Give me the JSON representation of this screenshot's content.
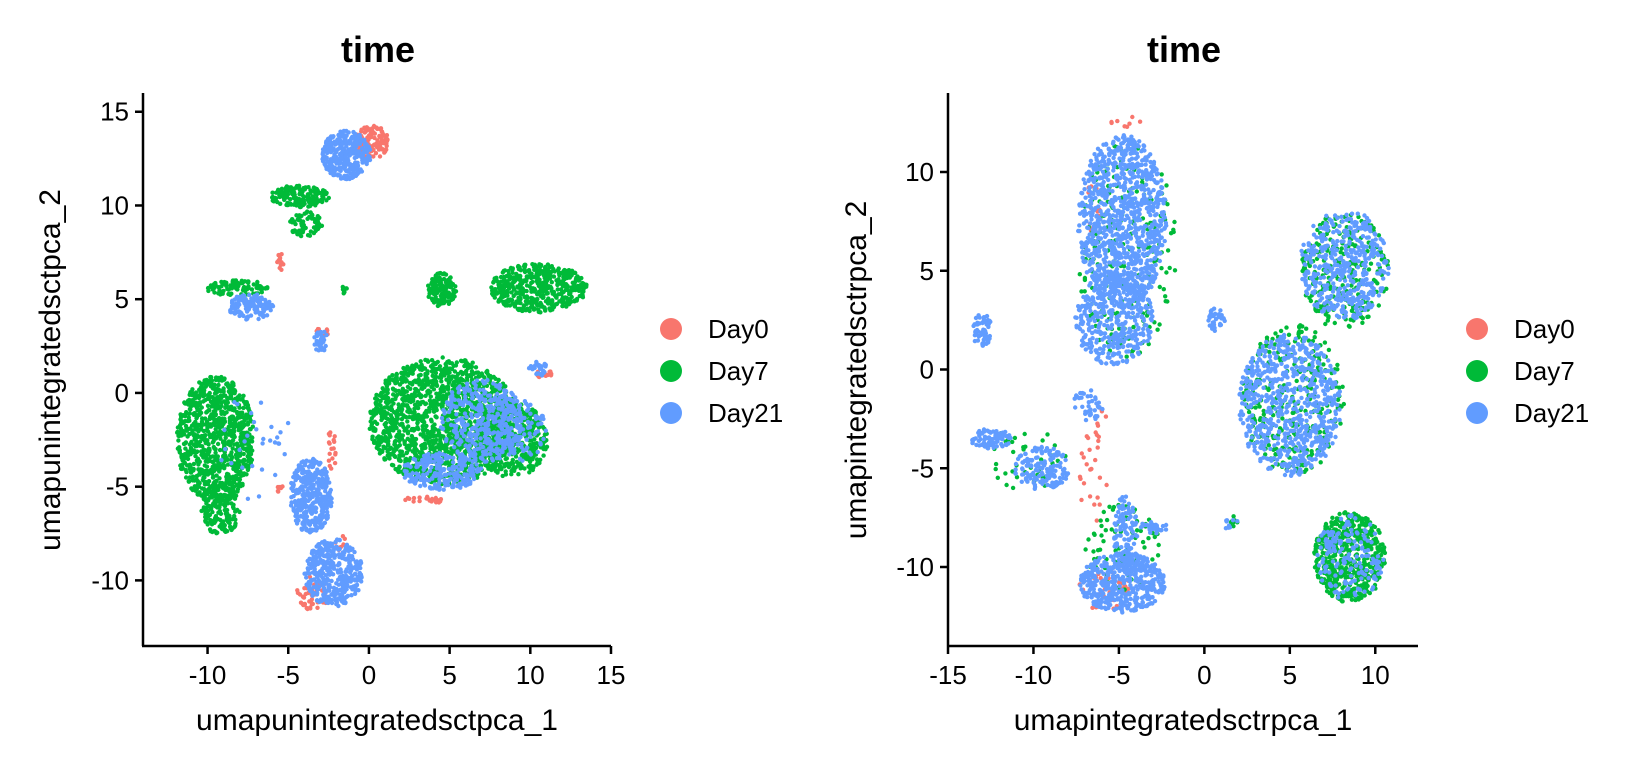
{
  "chart_data": [
    {
      "type": "scatter",
      "title": "time",
      "xlabel": "umapunintegratedsctpca_1",
      "ylabel": "umapunintegratedsctpca_2",
      "xlim": [
        -14,
        15
      ],
      "ylim": [
        -13.5,
        16
      ],
      "xticks": [
        -10,
        -5,
        0,
        5,
        10,
        15
      ],
      "xtick_labels": [
        "-10",
        "-5",
        "0",
        "5",
        "10",
        "15"
      ],
      "yticks": [
        -10,
        -5,
        0,
        5,
        10,
        15
      ],
      "ytick_labels": [
        "-10",
        "-5",
        "0",
        "5",
        "10",
        "15"
      ],
      "grid": false,
      "legend_position": "right",
      "series": [
        {
          "name": "Day0",
          "color": "#F8766D",
          "clusters": [
            {
              "cx": 0.2,
              "cy": 13.4,
              "rx": 1.0,
              "ry": 0.9,
              "n": 120
            },
            {
              "cx": -5.5,
              "cy": 7.0,
              "rx": 0.2,
              "ry": 0.5,
              "n": 14
            },
            {
              "cx": -2.9,
              "cy": 3.2,
              "rx": 0.4,
              "ry": 0.4,
              "n": 12
            },
            {
              "cx": 10.9,
              "cy": 1.0,
              "rx": 0.6,
              "ry": 0.3,
              "n": 14
            },
            {
              "cx": 3.5,
              "cy": -5.7,
              "rx": 1.3,
              "ry": 0.2,
              "n": 22
            },
            {
              "cx": -2.3,
              "cy": -3.0,
              "rx": 0.3,
              "ry": 1.1,
              "n": 18
            },
            {
              "cx": -3.5,
              "cy": -10.7,
              "rx": 1.0,
              "ry": 0.9,
              "n": 50
            },
            {
              "cx": -5.5,
              "cy": -5.0,
              "rx": 0.3,
              "ry": 0.3,
              "n": 8
            },
            {
              "cx": -1.7,
              "cy": -8.0,
              "rx": 0.5,
              "ry": 0.4,
              "n": 10
            }
          ]
        },
        {
          "name": "Day7",
          "color": "#00BA38",
          "clusters": [
            {
              "cx": -9.5,
              "cy": -2.5,
              "rx": 2.4,
              "ry": 3.4,
              "n": 900
            },
            {
              "cx": -9.2,
              "cy": -6.2,
              "rx": 1.2,
              "ry": 1.4,
              "n": 160
            },
            {
              "cx": -4.3,
              "cy": 10.5,
              "rx": 1.9,
              "ry": 0.6,
              "n": 160
            },
            {
              "cx": -3.9,
              "cy": 9.0,
              "rx": 1.0,
              "ry": 0.7,
              "n": 70
            },
            {
              "cx": -8.2,
              "cy": 5.6,
              "rx": 2.1,
              "ry": 0.4,
              "n": 90
            },
            {
              "cx": 4.6,
              "cy": -1.5,
              "rx": 4.6,
              "ry": 3.4,
              "n": 1500
            },
            {
              "cx": 8.8,
              "cy": -2.5,
              "rx": 2.3,
              "ry": 2.0,
              "n": 400
            },
            {
              "cx": 10.5,
              "cy": 5.6,
              "rx": 3.0,
              "ry": 1.3,
              "n": 500
            },
            {
              "cx": 4.5,
              "cy": 5.5,
              "rx": 0.9,
              "ry": 0.9,
              "n": 130
            },
            {
              "cx": -1.5,
              "cy": 5.5,
              "rx": 0.2,
              "ry": 0.2,
              "n": 8
            }
          ]
        },
        {
          "name": "Day21",
          "color": "#619CFF",
          "clusters": [
            {
              "cx": -1.4,
              "cy": 12.7,
              "rx": 1.5,
              "ry": 1.3,
              "n": 320
            },
            {
              "cx": -7.3,
              "cy": 4.6,
              "rx": 1.4,
              "ry": 0.7,
              "n": 130
            },
            {
              "cx": -3.6,
              "cy": -5.5,
              "rx": 1.3,
              "ry": 2.0,
              "n": 380
            },
            {
              "cx": -2.2,
              "cy": -9.6,
              "rx": 1.8,
              "ry": 1.8,
              "n": 400
            },
            {
              "cx": 4.5,
              "cy": -4.2,
              "rx": 2.5,
              "ry": 1.0,
              "n": 220
            },
            {
              "cx": 7.0,
              "cy": -1.5,
              "rx": 2.6,
              "ry": 2.2,
              "n": 380
            },
            {
              "cx": -3.0,
              "cy": 2.8,
              "rx": 0.5,
              "ry": 0.6,
              "n": 35
            },
            {
              "cx": 10.5,
              "cy": 1.3,
              "rx": 0.6,
              "ry": 0.4,
              "n": 28
            },
            {
              "cx": 9.0,
              "cy": -2.0,
              "rx": 2.0,
              "ry": 1.8,
              "n": 120
            },
            {
              "cx": -7.0,
              "cy": -3.0,
              "rx": 2.5,
              "ry": 3.0,
              "n": 30
            }
          ]
        }
      ]
    },
    {
      "type": "scatter",
      "title": "time",
      "xlabel": "umapintegratedsctrpca_1",
      "ylabel": "umapintegratedsctrpca_2",
      "xlim": [
        -15,
        12.5
      ],
      "ylim": [
        -14,
        14
      ],
      "xticks": [
        -15,
        -10,
        -5,
        0,
        5,
        10
      ],
      "xtick_labels": [
        "-15",
        "-10",
        "-5",
        "0",
        "5",
        "10"
      ],
      "yticks": [
        -10,
        -5,
        0,
        5,
        10
      ],
      "ytick_labels": [
        "-10",
        "-5",
        "0",
        "5",
        "10"
      ],
      "grid": false,
      "legend_position": "right",
      "series": [
        {
          "name": "Day0",
          "color": "#F8766D",
          "clusters": [
            {
              "cx": -6.5,
              "cy": -5.5,
              "rx": 0.8,
              "ry": 2.5,
              "n": 25
            },
            {
              "cx": -5.8,
              "cy": -11.2,
              "rx": 1.6,
              "ry": 1.0,
              "n": 30
            },
            {
              "cx": -6.5,
              "cy": 8.0,
              "rx": 0.4,
              "ry": 1.6,
              "n": 14
            },
            {
              "cx": -4.5,
              "cy": 12.5,
              "rx": 1.0,
              "ry": 0.3,
              "n": 8
            },
            {
              "cx": -6.0,
              "cy": -2.5,
              "rx": 0.4,
              "ry": 0.6,
              "n": 6
            }
          ]
        },
        {
          "name": "Day7",
          "color": "#00BA38",
          "clusters": [
            {
              "cx": -4.5,
              "cy": 6.0,
              "rx": 2.9,
              "ry": 5.5,
              "n": 200
            },
            {
              "cx": 8.2,
              "cy": 5.0,
              "rx": 2.6,
              "ry": 3.0,
              "n": 240
            },
            {
              "cx": 5.2,
              "cy": -1.5,
              "rx": 3.0,
              "ry": 3.8,
              "n": 300
            },
            {
              "cx": 8.5,
              "cy": -9.5,
              "rx": 2.1,
              "ry": 2.3,
              "n": 550
            },
            {
              "cx": -4.8,
              "cy": -9.0,
              "rx": 2.2,
              "ry": 2.2,
              "n": 80
            },
            {
              "cx": -10.5,
              "cy": -4.5,
              "rx": 2.4,
              "ry": 1.6,
              "n": 40
            },
            {
              "cx": 1.5,
              "cy": -7.7,
              "rx": 0.5,
              "ry": 0.3,
              "n": 8
            }
          ]
        },
        {
          "name": "Day21",
          "color": "#619CFF",
          "clusters": [
            {
              "cx": -4.8,
              "cy": 7.5,
              "rx": 2.6,
              "ry": 4.4,
              "n": 1000
            },
            {
              "cx": -5.3,
              "cy": 2.6,
              "rx": 2.3,
              "ry": 2.4,
              "n": 420
            },
            {
              "cx": -6.8,
              "cy": -1.8,
              "rx": 0.9,
              "ry": 0.8,
              "n": 40
            },
            {
              "cx": 8.2,
              "cy": 5.3,
              "rx": 2.6,
              "ry": 2.8,
              "n": 450
            },
            {
              "cx": 5.0,
              "cy": -1.8,
              "rx": 3.0,
              "ry": 3.6,
              "n": 700
            },
            {
              "cx": 0.7,
              "cy": 2.5,
              "rx": 0.5,
              "ry": 0.6,
              "n": 35
            },
            {
              "cx": -13.0,
              "cy": 2.0,
              "rx": 0.6,
              "ry": 0.8,
              "n": 55
            },
            {
              "cx": -12.5,
              "cy": -3.5,
              "rx": 1.2,
              "ry": 0.5,
              "n": 80
            },
            {
              "cx": -9.5,
              "cy": -5.0,
              "rx": 1.6,
              "ry": 1.1,
              "n": 150
            },
            {
              "cx": -4.8,
              "cy": -10.8,
              "rx": 2.5,
              "ry": 1.5,
              "n": 450
            },
            {
              "cx": -4.6,
              "cy": -8.3,
              "rx": 0.7,
              "ry": 2.0,
              "n": 120
            },
            {
              "cx": -3.0,
              "cy": -8.0,
              "rx": 0.9,
              "ry": 0.3,
              "n": 30
            },
            {
              "cx": 8.5,
              "cy": -9.5,
              "rx": 2.0,
              "ry": 2.2,
              "n": 160
            },
            {
              "cx": 1.5,
              "cy": -7.8,
              "rx": 0.5,
              "ry": 0.3,
              "n": 10
            }
          ]
        }
      ]
    }
  ]
}
